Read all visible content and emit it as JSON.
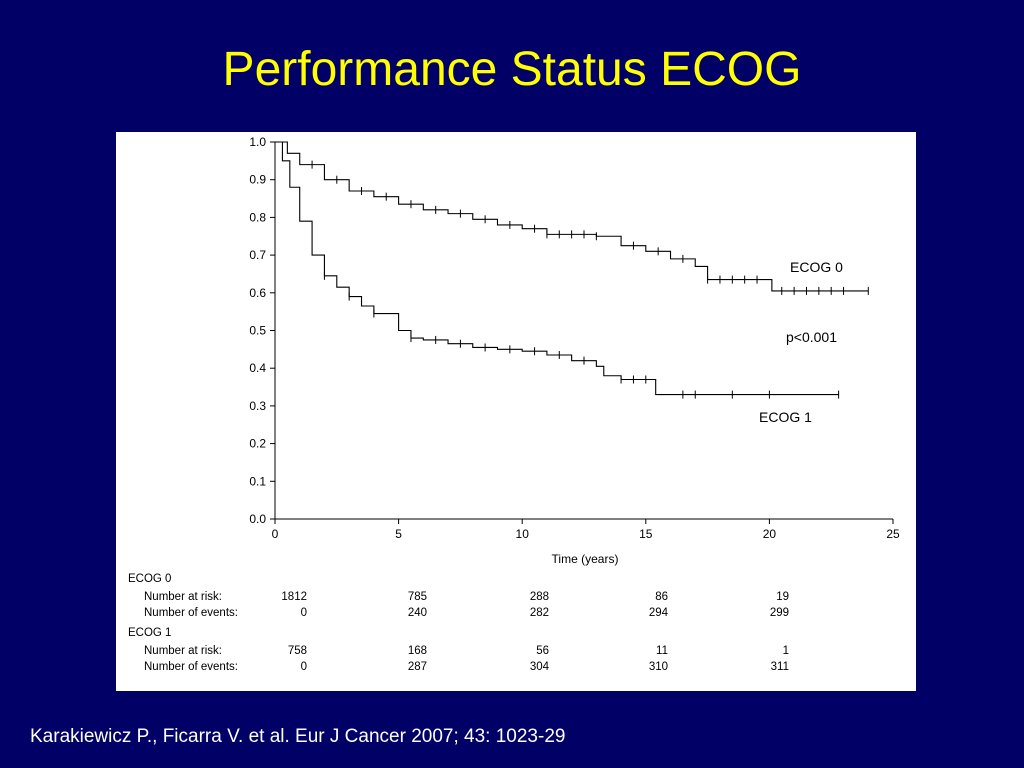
{
  "slide": {
    "title": "Performance Status ECOG",
    "citation": "Karakiewicz P., Ficarra V. et al. Eur J Cancer 2007; 43: 1023-29",
    "background_color": "#000066",
    "title_color": "#ffff00"
  },
  "chart_data": {
    "type": "line",
    "step": true,
    "title": "",
    "xlabel": "Time (years)",
    "ylabel": "",
    "xlim": [
      0,
      25
    ],
    "ylim": [
      0,
      1.0
    ],
    "xticks": [
      "0",
      "5",
      "10",
      "15",
      "20",
      "25"
    ],
    "yticks": [
      "0.0",
      "0.1",
      "0.2",
      "0.3",
      "0.4",
      "0.5",
      "0.6",
      "0.7",
      "0.8",
      "0.9",
      "1.0"
    ],
    "grid": false,
    "legend": "none",
    "annotations": [
      "ECOG 0",
      "p<0.001",
      "ECOG 1"
    ],
    "series": [
      {
        "name": "ECOG 0",
        "x": [
          0,
          0.5,
          1,
          2,
          3,
          4,
          5,
          6,
          7,
          8,
          9,
          10,
          11,
          12,
          13,
          14,
          15,
          16,
          17,
          17.5,
          20,
          20.1,
          24
        ],
        "y": [
          1.0,
          0.97,
          0.94,
          0.9,
          0.87,
          0.855,
          0.835,
          0.82,
          0.81,
          0.795,
          0.78,
          0.77,
          0.755,
          0.755,
          0.75,
          0.725,
          0.71,
          0.69,
          0.67,
          0.635,
          0.635,
          0.605,
          0.605
        ],
        "censor_x": [
          1.5,
          2.5,
          3.5,
          4.5,
          5.5,
          6.5,
          7.5,
          8.5,
          9.5,
          10.5,
          11,
          11.5,
          12,
          12.5,
          13,
          14.5,
          15.5,
          16.5,
          17.5,
          18,
          18.5,
          19,
          19.5,
          20.5,
          21,
          21.5,
          22,
          22.5,
          23,
          24
        ]
      },
      {
        "name": "ECOG 1",
        "x": [
          0,
          0.3,
          0.6,
          1,
          1.5,
          2,
          2.5,
          3,
          3.5,
          4,
          5,
          5.5,
          6,
          7,
          8,
          9,
          10,
          11,
          12,
          13,
          13.3,
          14,
          15,
          15.4,
          16,
          22.8
        ],
        "y": [
          1.0,
          0.95,
          0.88,
          0.79,
          0.7,
          0.645,
          0.615,
          0.59,
          0.565,
          0.545,
          0.5,
          0.48,
          0.475,
          0.465,
          0.455,
          0.45,
          0.445,
          0.435,
          0.42,
          0.405,
          0.38,
          0.37,
          0.37,
          0.33,
          0.33,
          0.33
        ],
        "censor_x": [
          2,
          3,
          4,
          5.5,
          6.5,
          7.5,
          8.5,
          9.5,
          10.5,
          11.5,
          12.5,
          14,
          14.5,
          15,
          16.5,
          17,
          18.5,
          20,
          22.8
        ]
      }
    ],
    "risk_table": {
      "time_points": [
        0,
        5,
        10,
        15,
        20
      ],
      "groups": [
        {
          "name": "ECOG 0",
          "rows": [
            {
              "label": "Number at risk:",
              "values": [
                "1812",
                "785",
                "288",
                "86",
                "19"
              ]
            },
            {
              "label": "Number of events:",
              "values": [
                "0",
                "240",
                "282",
                "294",
                "299"
              ]
            }
          ]
        },
        {
          "name": "ECOG 1",
          "rows": [
            {
              "label": "Number at risk:",
              "values": [
                "758",
                "168",
                "56",
                "11",
                "1"
              ]
            },
            {
              "label": "Number of events:",
              "values": [
                "0",
                "287",
                "304",
                "310",
                "311"
              ]
            }
          ]
        }
      ]
    }
  }
}
